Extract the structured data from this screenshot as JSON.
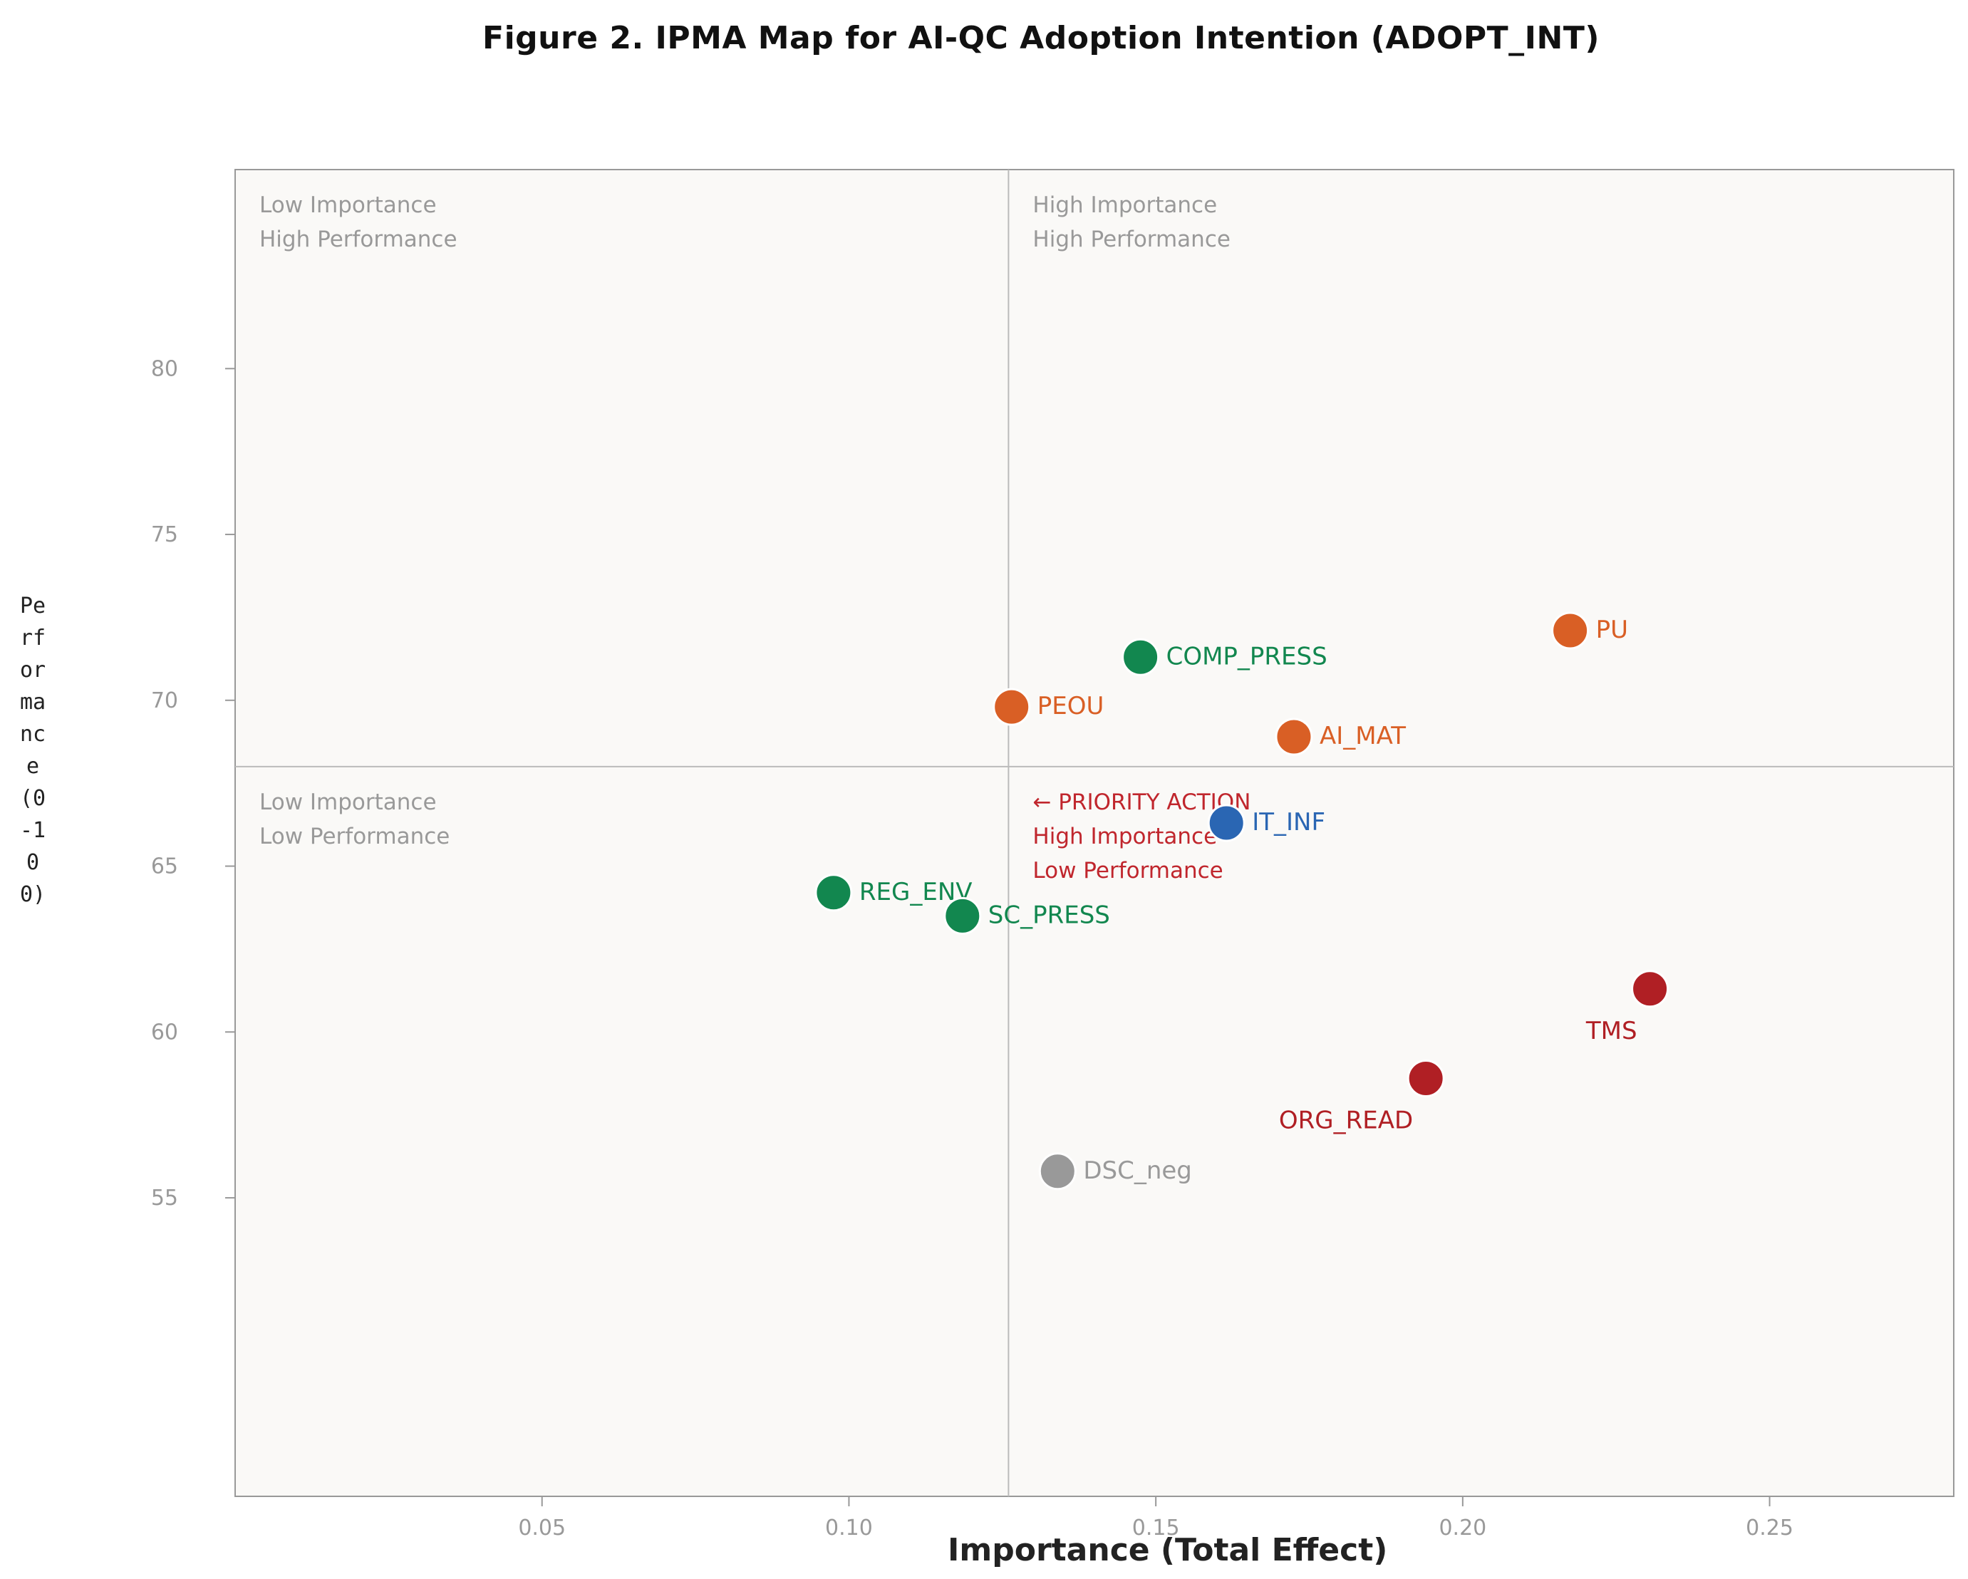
{
  "chart_data": {
    "type": "scatter",
    "title": "Figure 2. IPMA Map for AI-QC Adoption Intention (ADOPT_INT)",
    "xlabel": "Importance (Total Effect)",
    "ylabel": "Performance (0-100)",
    "xlim": [
      0.0,
      0.28
    ],
    "ylim": [
      46,
      86
    ],
    "xticks": [
      "0.05",
      "0.10",
      "0.15",
      "0.20",
      "0.25"
    ],
    "xtick_values": [
      0.05,
      0.1,
      0.15,
      0.2,
      0.25
    ],
    "yticks": [
      "55",
      "60",
      "65",
      "70",
      "75",
      "80"
    ],
    "ytick_values": [
      55,
      60,
      65,
      70,
      75,
      80
    ],
    "grid": false,
    "quadrant_lines": {
      "importance": 0.126,
      "performance": 68.0
    },
    "quadrant_labels": [
      {
        "line1": "Low Importance",
        "line2": "High Performance",
        "line3": "",
        "corner": "top-left",
        "color": "#999999"
      },
      {
        "line1": "High Importance",
        "line2": "High Performance",
        "line3": "",
        "corner": "top-right",
        "color": "#999999"
      },
      {
        "line1": "Low Importance",
        "line2": "Low Performance",
        "line3": "",
        "corner": "bottom-left",
        "color": "#999999"
      },
      {
        "line1": "← PRIORITY ACTION",
        "line2": "High Importance",
        "line3": "Low Performance",
        "corner": "bottom-right",
        "color": "#c0262d"
      }
    ],
    "points": [
      {
        "label": "PU",
        "x": 0.2175,
        "y": 72.1,
        "color": "#d95f25",
        "label_pos": "right"
      },
      {
        "label": "COMP_PRESS",
        "x": 0.1475,
        "y": 71.3,
        "color": "#12874f",
        "label_pos": "right"
      },
      {
        "label": "PEOU",
        "x": 0.1265,
        "y": 69.8,
        "color": "#d95f25",
        "label_pos": "right"
      },
      {
        "label": "AI_MAT",
        "x": 0.1725,
        "y": 68.9,
        "color": "#d95f25",
        "label_pos": "right"
      },
      {
        "label": "IT_INF",
        "x": 0.1615,
        "y": 66.3,
        "color": "#2a66b3",
        "label_pos": "right"
      },
      {
        "label": "REG_ENV",
        "x": 0.0975,
        "y": 64.2,
        "color": "#12874f",
        "label_pos": "right"
      },
      {
        "label": "SC_PRESS",
        "x": 0.1185,
        "y": 63.5,
        "color": "#12874f",
        "label_pos": "right"
      },
      {
        "label": "TMS",
        "x": 0.2305,
        "y": 61.3,
        "color": "#b01f24",
        "label_pos": "below-left"
      },
      {
        "label": "ORG_READ",
        "x": 0.194,
        "y": 58.6,
        "color": "#b01f24",
        "label_pos": "below-left"
      },
      {
        "label": "DSC_neg",
        "x": 0.134,
        "y": 55.8,
        "color": "#999999",
        "label_pos": "right"
      }
    ]
  }
}
